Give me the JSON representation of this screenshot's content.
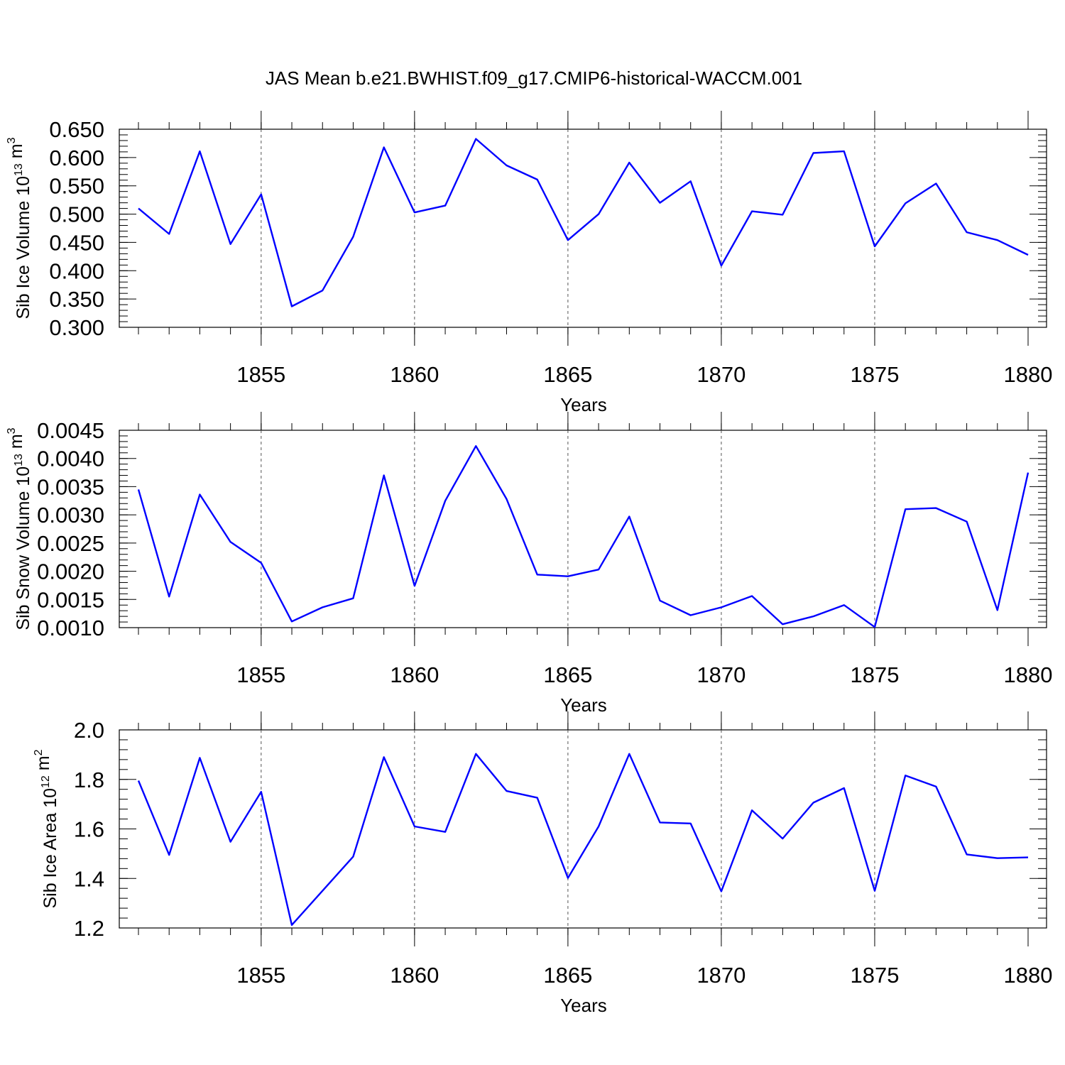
{
  "title": "JAS Mean b.e21.BWHIST.f09_g17.CMIP6-historical-WACCM.001",
  "colors": {
    "line": "#0000ff",
    "axis": "#000000",
    "grid": "#555555"
  },
  "chart_data": [
    {
      "type": "line",
      "title": "JAS Mean b.e21.BWHIST.f09_g17.CMIP6-historical-WACCM.001",
      "xlabel": "Years",
      "ylabel": {
        "main": "Sib Ice Volume 10",
        "sup": "13",
        "unit": " m",
        "unitsup": "3"
      },
      "xlim": [
        1851,
        1880
      ],
      "ylim": [
        0.3,
        0.65
      ],
      "grid": "vertical dashed at major x ticks",
      "xticks": [
        1855,
        1860,
        1865,
        1870,
        1875,
        1880
      ],
      "xtick_labels": [
        "1855",
        "1860",
        "1865",
        "1870",
        "1875",
        "1880"
      ],
      "yticks": [
        0.3,
        0.35,
        0.4,
        0.45,
        0.5,
        0.55,
        0.6,
        0.65
      ],
      "ytick_labels": [
        "0.300",
        "0.350",
        "0.400",
        "0.450",
        "0.500",
        "0.550",
        "0.600",
        "0.650"
      ],
      "x": [
        1851,
        1852,
        1853,
        1854,
        1855,
        1856,
        1857,
        1858,
        1859,
        1860,
        1861,
        1862,
        1863,
        1864,
        1865,
        1866,
        1867,
        1868,
        1869,
        1870,
        1871,
        1872,
        1873,
        1874,
        1875,
        1876,
        1877,
        1878,
        1879,
        1880
      ],
      "series": [
        {
          "name": "Sib Ice Volume",
          "values": [
            0.51,
            0.465,
            0.611,
            0.447,
            0.535,
            0.337,
            0.365,
            0.46,
            0.618,
            0.503,
            0.515,
            0.633,
            0.586,
            0.561,
            0.454,
            0.5,
            0.591,
            0.52,
            0.558,
            0.409,
            0.505,
            0.499,
            0.608,
            0.611,
            0.443,
            0.519,
            0.554,
            0.468,
            0.454,
            0.428
          ]
        }
      ]
    },
    {
      "type": "line",
      "xlabel": "Years",
      "ylabel": {
        "main": "Sib Snow Volume 10",
        "sup": "13",
        "unit": " m",
        "unitsup": "3"
      },
      "xlim": [
        1851,
        1880
      ],
      "ylim": [
        0.001,
        0.0045
      ],
      "grid": "vertical dashed at major x ticks",
      "xticks": [
        1855,
        1860,
        1865,
        1870,
        1875,
        1880
      ],
      "xtick_labels": [
        "1855",
        "1860",
        "1865",
        "1870",
        "1875",
        "1880"
      ],
      "yticks": [
        0.001,
        0.0015,
        0.002,
        0.0025,
        0.003,
        0.0035,
        0.004,
        0.0045
      ],
      "ytick_labels": [
        "0.0010",
        "0.0015",
        "0.0020",
        "0.0025",
        "0.0030",
        "0.0035",
        "0.0040",
        "0.0045"
      ],
      "x": [
        1851,
        1852,
        1853,
        1854,
        1855,
        1856,
        1857,
        1858,
        1859,
        1860,
        1861,
        1862,
        1863,
        1864,
        1865,
        1866,
        1867,
        1868,
        1869,
        1870,
        1871,
        1872,
        1873,
        1874,
        1875,
        1876,
        1877,
        1878,
        1879,
        1880
      ],
      "series": [
        {
          "name": "Sib Snow Volume",
          "values": [
            0.00345,
            0.00155,
            0.00336,
            0.00252,
            0.00215,
            0.00111,
            0.00136,
            0.00152,
            0.0037,
            0.00174,
            0.00325,
            0.00422,
            0.00328,
            0.00194,
            0.00191,
            0.00203,
            0.00297,
            0.00148,
            0.00122,
            0.00136,
            0.00156,
            0.00106,
            0.0012,
            0.0014,
            0.00101,
            0.0031,
            0.00312,
            0.00288,
            0.00131,
            0.00375
          ]
        }
      ]
    },
    {
      "type": "line",
      "xlabel": "Years",
      "ylabel": {
        "main": "Sib Ice Area 10",
        "sup": "12",
        "unit": " m",
        "unitsup": "2"
      },
      "xlim": [
        1851,
        1880
      ],
      "ylim": [
        1.2,
        2.0
      ],
      "grid": "vertical dashed at major x ticks",
      "xticks": [
        1855,
        1860,
        1865,
        1870,
        1875,
        1880
      ],
      "xtick_labels": [
        "1855",
        "1860",
        "1865",
        "1870",
        "1875",
        "1880"
      ],
      "yticks": [
        1.2,
        1.4,
        1.6,
        1.8,
        2.0
      ],
      "ytick_labels": [
        "1.2",
        "1.4",
        "1.6",
        "1.8",
        "2.0"
      ],
      "x": [
        1851,
        1852,
        1853,
        1854,
        1855,
        1856,
        1857,
        1858,
        1859,
        1860,
        1861,
        1862,
        1863,
        1864,
        1865,
        1866,
        1867,
        1868,
        1869,
        1870,
        1871,
        1872,
        1873,
        1874,
        1875,
        1876,
        1877,
        1878,
        1879,
        1880
      ],
      "series": [
        {
          "name": "Sib Ice Area",
          "values": [
            1.795,
            1.495,
            1.887,
            1.548,
            1.75,
            1.212,
            1.35,
            1.488,
            1.89,
            1.61,
            1.588,
            1.903,
            1.753,
            1.726,
            1.402,
            1.61,
            1.903,
            1.626,
            1.622,
            1.348,
            1.675,
            1.561,
            1.706,
            1.765,
            1.35,
            1.816,
            1.771,
            1.497,
            1.482,
            1.485
          ]
        }
      ]
    }
  ]
}
